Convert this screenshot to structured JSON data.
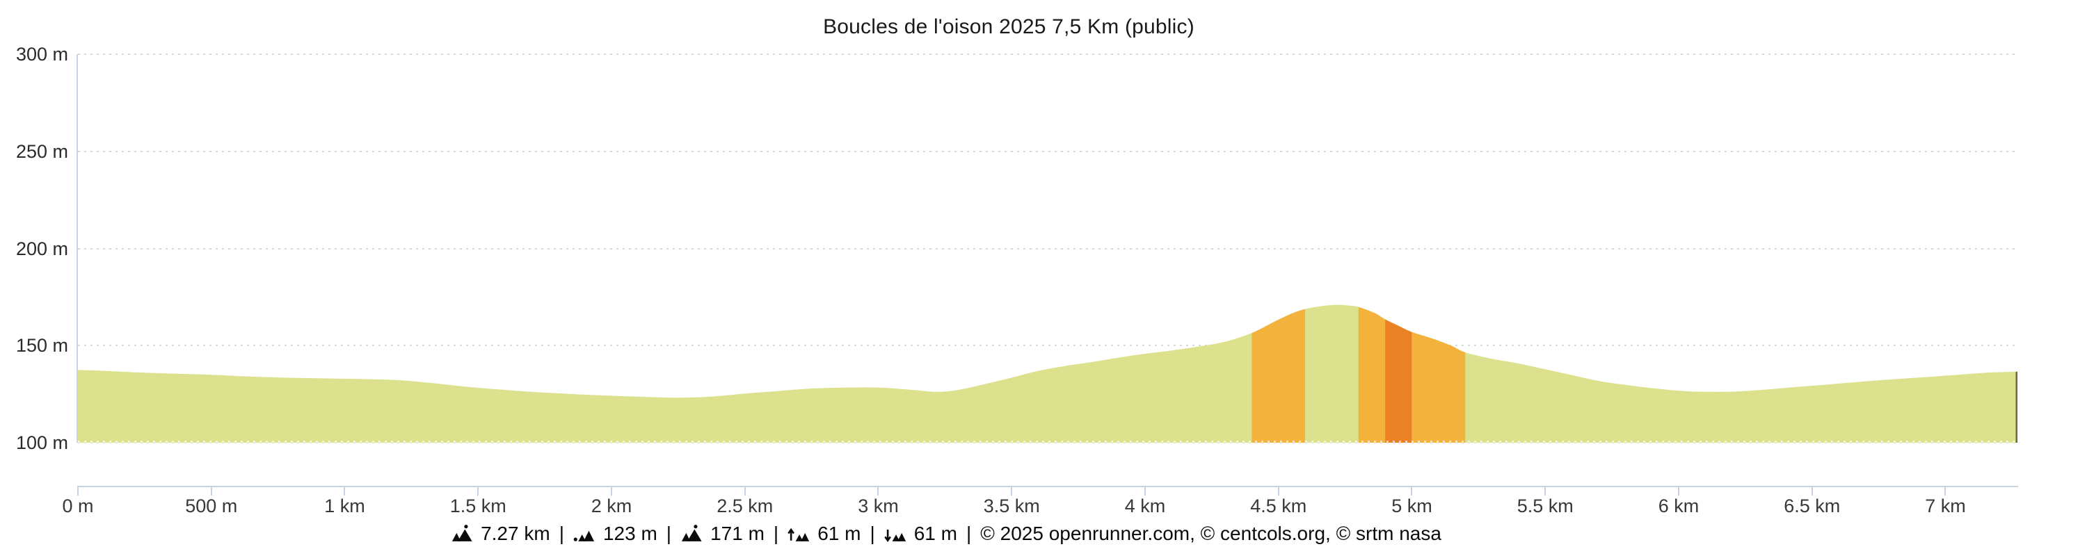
{
  "title": "Boucles de l'oison 2025 7,5 Km (public)",
  "colors": {
    "area_fill": "#dce18d",
    "slope_medium": "#f2b23c",
    "slope_steep": "#eb8125",
    "area_edge": "#6b6b35",
    "axis": "#c7d3e0",
    "gridline": "#d9d9d9",
    "baseline_dots": "rgba(255,255,255,0.65)"
  },
  "y_axis": {
    "labels": [
      "300 m",
      "250 m",
      "200 m",
      "150 m",
      "100 m"
    ]
  },
  "x_axis": {
    "labels": [
      "0 m",
      "500 m",
      "1 km",
      "1.5 km",
      "2 km",
      "2.5 km",
      "3 km",
      "3.5 km",
      "4 km",
      "4.5 km",
      "5 km",
      "5.5 km",
      "6 km",
      "6.5 km",
      "7 km"
    ]
  },
  "stats": {
    "separator": "|",
    "items": [
      {
        "key": "distance",
        "icon": "distance-mountain-icon",
        "value": "7.27 km"
      },
      {
        "key": "min-altitude",
        "icon": "min-altitude-icon",
        "value": "123 m"
      },
      {
        "key": "max-altitude",
        "icon": "max-altitude-icon",
        "value": "171 m"
      },
      {
        "key": "total-ascent",
        "icon": "total-ascent-icon",
        "value": "61 m"
      },
      {
        "key": "total-descent",
        "icon": "total-descent-icon",
        "value": "61 m"
      }
    ],
    "credits": "© 2025 openrunner.com, © centcols.org, © srtm nasa"
  },
  "chart_data": {
    "type": "area",
    "title": "Boucles de l'oison 2025 7,5 Km (public)",
    "ylabel_unit": "m",
    "xlabel_unit": "km",
    "ylim": [
      100,
      300
    ],
    "y_ticks_m": [
      100,
      150,
      200,
      250,
      300
    ],
    "xlim_km": [
      0,
      7.27
    ],
    "x_ticks_km": [
      0,
      0.5,
      1,
      1.5,
      2,
      2.5,
      3,
      3.5,
      4,
      4.5,
      5,
      5.5,
      6,
      6.5,
      7
    ],
    "grid": "dotted-horizontal",
    "stats": {
      "distance_km": 7.27,
      "min_m": 123,
      "max_m": 171,
      "ascent_m": 61,
      "descent_m": 61
    },
    "profile": [
      [
        0.0,
        137.5
      ],
      [
        0.1,
        137.0
      ],
      [
        0.22,
        136.2
      ],
      [
        0.35,
        135.6
      ],
      [
        0.5,
        135.0
      ],
      [
        0.62,
        134.2
      ],
      [
        0.75,
        133.6
      ],
      [
        0.9,
        133.2
      ],
      [
        1.05,
        132.8
      ],
      [
        1.2,
        132.2
      ],
      [
        1.32,
        130.8
      ],
      [
        1.45,
        128.9
      ],
      [
        1.58,
        127.4
      ],
      [
        1.72,
        126.0
      ],
      [
        1.86,
        125.0
      ],
      [
        2.0,
        124.2
      ],
      [
        2.12,
        123.6
      ],
      [
        2.25,
        123.2
      ],
      [
        2.38,
        123.8
      ],
      [
        2.5,
        125.3
      ],
      [
        2.62,
        126.6
      ],
      [
        2.75,
        127.9
      ],
      [
        2.88,
        128.4
      ],
      [
        3.0,
        128.4
      ],
      [
        3.12,
        127.3
      ],
      [
        3.22,
        126.2
      ],
      [
        3.3,
        127.2
      ],
      [
        3.4,
        130.2
      ],
      [
        3.5,
        133.5
      ],
      [
        3.6,
        137.0
      ],
      [
        3.7,
        139.5
      ],
      [
        3.8,
        141.5
      ],
      [
        3.9,
        143.8
      ],
      [
        4.0,
        145.8
      ],
      [
        4.1,
        147.5
      ],
      [
        4.2,
        149.5
      ],
      [
        4.3,
        152.0
      ],
      [
        4.4,
        156.5
      ],
      [
        4.48,
        162.0
      ],
      [
        4.55,
        166.5
      ],
      [
        4.6,
        168.8
      ],
      [
        4.66,
        170.3
      ],
      [
        4.72,
        171.0
      ],
      [
        4.78,
        170.4
      ],
      [
        4.8,
        169.9
      ],
      [
        4.86,
        166.8
      ],
      [
        4.9,
        163.5
      ],
      [
        4.95,
        160.2
      ],
      [
        5.0,
        157.0
      ],
      [
        5.08,
        153.5
      ],
      [
        5.15,
        149.8
      ],
      [
        5.2,
        146.5
      ],
      [
        5.3,
        143.2
      ],
      [
        5.4,
        140.8
      ],
      [
        5.5,
        137.8
      ],
      [
        5.6,
        134.8
      ],
      [
        5.7,
        131.8
      ],
      [
        5.8,
        129.8
      ],
      [
        5.92,
        127.8
      ],
      [
        6.02,
        126.6
      ],
      [
        6.12,
        126.2
      ],
      [
        6.22,
        126.4
      ],
      [
        6.32,
        127.3
      ],
      [
        6.45,
        128.8
      ],
      [
        6.58,
        130.2
      ],
      [
        6.7,
        131.6
      ],
      [
        6.82,
        132.8
      ],
      [
        6.95,
        134.0
      ],
      [
        7.08,
        135.3
      ],
      [
        7.18,
        136.2
      ],
      [
        7.27,
        136.6
      ]
    ],
    "slope_bands": [
      {
        "from_km": 4.4,
        "to_km": 4.6,
        "color_key": "slope_medium"
      },
      {
        "from_km": 4.8,
        "to_km": 4.9,
        "color_key": "slope_medium"
      },
      {
        "from_km": 4.9,
        "to_km": 5.0,
        "color_key": "slope_steep"
      },
      {
        "from_km": 5.0,
        "to_km": 5.2,
        "color_key": "slope_medium"
      }
    ]
  }
}
